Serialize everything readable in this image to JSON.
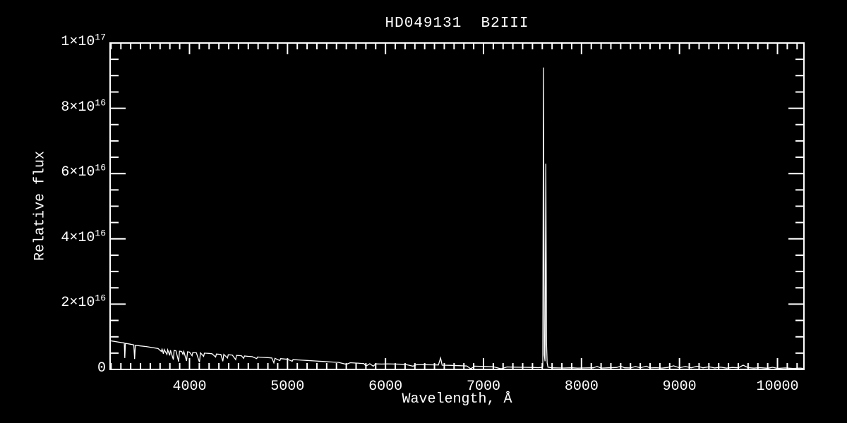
{
  "figure": {
    "background_color": "#000000",
    "foreground_color": "#ffffff"
  },
  "chart_data": {
    "type": "line",
    "title": "HD049131  B2III",
    "xlabel": "Wavelength, Å",
    "ylabel": "Relative flux",
    "xlim": [
      3190,
      10270
    ],
    "ylim_exp16": [
      0,
      10
    ],
    "grid": false,
    "legend": null,
    "line_color": "#ffffff",
    "x_ticks": [
      {
        "value": 4000,
        "label": "4000"
      },
      {
        "value": 5000,
        "label": "5000"
      },
      {
        "value": 6000,
        "label": "6000"
      },
      {
        "value": 7000,
        "label": "7000"
      },
      {
        "value": 8000,
        "label": "8000"
      },
      {
        "value": 9000,
        "label": "9000"
      },
      {
        "value": 10000,
        "label": "10000"
      }
    ],
    "x_minor_step": 100,
    "y_ticks_exp16": [
      {
        "value": 0,
        "text": "0",
        "exp": ""
      },
      {
        "value": 2,
        "text": "2×10",
        "exp": "16"
      },
      {
        "value": 4,
        "text": "4×10",
        "exp": "16"
      },
      {
        "value": 6,
        "text": "6×10",
        "exp": "16"
      },
      {
        "value": 8,
        "text": "8×10",
        "exp": "16"
      },
      {
        "value": 10,
        "text": "1×10",
        "exp": "17"
      }
    ],
    "y_minor_step_exp16": 0.5,
    "flux_unit": "1e16 relative flux units",
    "series": [
      {
        "name": "spectrum",
        "points": [
          [
            3190,
            0.88
          ],
          [
            3230,
            0.86
          ],
          [
            3270,
            0.84
          ],
          [
            3310,
            0.82
          ],
          [
            3335,
            0.81
          ],
          [
            3340,
            0.35
          ],
          [
            3346,
            0.8
          ],
          [
            3400,
            0.77
          ],
          [
            3432,
            0.75
          ],
          [
            3440,
            0.32
          ],
          [
            3448,
            0.74
          ],
          [
            3500,
            0.72
          ],
          [
            3560,
            0.7
          ],
          [
            3620,
            0.67
          ],
          [
            3680,
            0.64
          ],
          [
            3712,
            0.55
          ],
          [
            3720,
            0.62
          ],
          [
            3734,
            0.48
          ],
          [
            3742,
            0.61
          ],
          [
            3770,
            0.46
          ],
          [
            3778,
            0.6
          ],
          [
            3798,
            0.43
          ],
          [
            3806,
            0.59
          ],
          [
            3835,
            0.3
          ],
          [
            3843,
            0.58
          ],
          [
            3862,
            0.57
          ],
          [
            3889,
            0.24
          ],
          [
            3898,
            0.56
          ],
          [
            3920,
            0.55
          ],
          [
            3933,
            0.46
          ],
          [
            3942,
            0.55
          ],
          [
            3970,
            0.26
          ],
          [
            3980,
            0.54
          ],
          [
            4000,
            0.53
          ],
          [
            4026,
            0.42
          ],
          [
            4034,
            0.52
          ],
          [
            4070,
            0.51
          ],
          [
            4102,
            0.22
          ],
          [
            4112,
            0.51
          ],
          [
            4144,
            0.4
          ],
          [
            4152,
            0.5
          ],
          [
            4200,
            0.49
          ],
          [
            4230,
            0.48
          ],
          [
            4267,
            0.38
          ],
          [
            4275,
            0.47
          ],
          [
            4320,
            0.46
          ],
          [
            4340,
            0.25
          ],
          [
            4350,
            0.46
          ],
          [
            4388,
            0.35
          ],
          [
            4396,
            0.45
          ],
          [
            4437,
            0.44
          ],
          [
            4471,
            0.3
          ],
          [
            4480,
            0.43
          ],
          [
            4530,
            0.42
          ],
          [
            4553,
            0.34
          ],
          [
            4561,
            0.41
          ],
          [
            4600,
            0.4
          ],
          [
            4640,
            0.39
          ],
          [
            4686,
            0.33
          ],
          [
            4694,
            0.38
          ],
          [
            4750,
            0.37
          ],
          [
            4800,
            0.36
          ],
          [
            4840,
            0.35
          ],
          [
            4861,
            0.2
          ],
          [
            4872,
            0.34
          ],
          [
            4922,
            0.27
          ],
          [
            4930,
            0.33
          ],
          [
            5000,
            0.31
          ],
          [
            5048,
            0.25
          ],
          [
            5056,
            0.3
          ],
          [
            5120,
            0.29
          ],
          [
            5200,
            0.275
          ],
          [
            5280,
            0.26
          ],
          [
            5360,
            0.245
          ],
          [
            5440,
            0.23
          ],
          [
            5520,
            0.215
          ],
          [
            5600,
            0.155
          ],
          [
            5640,
            0.205
          ],
          [
            5700,
            0.195
          ],
          [
            5780,
            0.18
          ],
          [
            5800,
            0.1
          ],
          [
            5840,
            0.175
          ],
          [
            5875,
            0.1
          ],
          [
            5900,
            0.17
          ],
          [
            5960,
            0.165
          ],
          [
            6020,
            0.17
          ],
          [
            6100,
            0.165
          ],
          [
            6200,
            0.155
          ],
          [
            6280,
            0.1
          ],
          [
            6320,
            0.15
          ],
          [
            6400,
            0.145
          ],
          [
            6480,
            0.14
          ],
          [
            6540,
            0.135
          ],
          [
            6562,
            0.35
          ],
          [
            6578,
            0.13
          ],
          [
            6650,
            0.125
          ],
          [
            6750,
            0.115
          ],
          [
            6830,
            0.105
          ],
          [
            6870,
            0.02
          ],
          [
            6910,
            0.1
          ],
          [
            7000,
            0.09
          ],
          [
            7100,
            0.08
          ],
          [
            7180,
            0.02
          ],
          [
            7240,
            0.075
          ],
          [
            7320,
            0.07
          ],
          [
            7400,
            0.065
          ],
          [
            7500,
            0.06
          ],
          [
            7560,
            0.055
          ],
          [
            7590,
            0.06
          ],
          [
            7605,
            0.1
          ],
          [
            7612,
            9.25
          ],
          [
            7620,
            0.45
          ],
          [
            7628,
            0.25
          ],
          [
            7636,
            6.3
          ],
          [
            7643,
            0.8
          ],
          [
            7650,
            0.2
          ],
          [
            7658,
            0.07
          ],
          [
            7700,
            0.05
          ],
          [
            7760,
            0.046
          ],
          [
            7820,
            0.043
          ],
          [
            7900,
            0.05
          ],
          [
            7960,
            0.04
          ],
          [
            8040,
            0.046
          ],
          [
            8120,
            0.05
          ],
          [
            8160,
            0.09
          ],
          [
            8200,
            0.042
          ],
          [
            8280,
            0.05
          ],
          [
            8360,
            0.06
          ],
          [
            8400,
            0.1
          ],
          [
            8440,
            0.05
          ],
          [
            8500,
            0.046
          ],
          [
            8550,
            0.09
          ],
          [
            8600,
            0.05
          ],
          [
            8660,
            0.1
          ],
          [
            8700,
            0.046
          ],
          [
            8760,
            0.055
          ],
          [
            8820,
            0.042
          ],
          [
            8880,
            0.06
          ],
          [
            8940,
            0.11
          ],
          [
            9000,
            0.05
          ],
          [
            9060,
            0.09
          ],
          [
            9120,
            0.05
          ],
          [
            9180,
            0.1
          ],
          [
            9240,
            0.05
          ],
          [
            9300,
            0.08
          ],
          [
            9360,
            0.046
          ],
          [
            9420,
            0.07
          ],
          [
            9480,
            0.042
          ],
          [
            9540,
            0.06
          ],
          [
            9600,
            0.05
          ],
          [
            9650,
            0.13
          ],
          [
            9700,
            0.055
          ],
          [
            9760,
            0.042
          ],
          [
            9820,
            0.055
          ],
          [
            9900,
            0.036
          ],
          [
            9950,
            0.065
          ],
          [
            10000,
            0.032
          ],
          [
            10080,
            0.045
          ],
          [
            10160,
            0.028
          ],
          [
            10230,
            0.04
          ],
          [
            10270,
            0.03
          ]
        ]
      }
    ]
  }
}
